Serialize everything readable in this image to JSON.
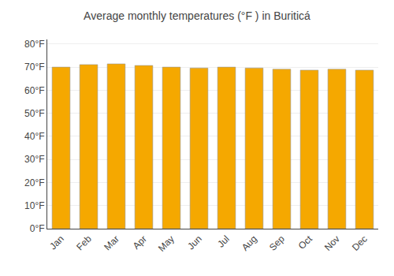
{
  "chart_data": {
    "type": "bar",
    "title": "Average monthly temperatures (°F ) in Buriticá",
    "categories": [
      "Jan",
      "Feb",
      "Mar",
      "Apr",
      "May",
      "Jun",
      "Jul",
      "Aug",
      "Sep",
      "Oct",
      "Nov",
      "Dec"
    ],
    "values": [
      70.0,
      71.1,
      71.4,
      70.7,
      70.0,
      69.6,
      70.0,
      69.6,
      69.1,
      68.7,
      69.1,
      68.7
    ],
    "color": "#F5A800",
    "ylim": [
      0,
      82
    ],
    "yticks": [
      {
        "value": 0,
        "label": "0°F"
      },
      {
        "value": 10,
        "label": "10°F"
      },
      {
        "value": 20,
        "label": "20°F"
      },
      {
        "value": 30,
        "label": "30°F"
      },
      {
        "value": 40,
        "label": "40°F"
      },
      {
        "value": 50,
        "label": "50°F"
      },
      {
        "value": 60,
        "label": "60°F"
      },
      {
        "value": 70,
        "label": "70°F"
      },
      {
        "value": 80,
        "label": "80°F"
      }
    ],
    "grid": true
  }
}
